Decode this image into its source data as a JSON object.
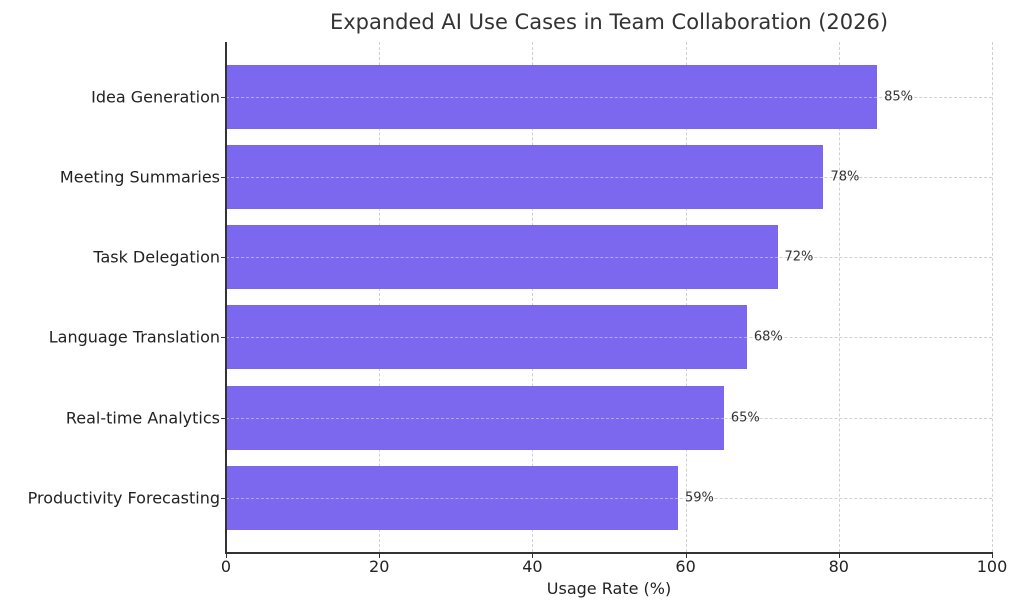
{
  "chart_data": {
    "type": "bar",
    "orientation": "horizontal",
    "title": "Expanded AI Use Cases in Team Collaboration (2026)",
    "xlabel": "Usage Rate (%)",
    "ylabel": "",
    "categories": [
      "Idea Generation",
      "Meeting Summaries",
      "Task Delegation",
      "Language Translation",
      "Real-time Analytics",
      "Productivity Forecasting"
    ],
    "values": [
      85,
      78,
      72,
      68,
      65,
      59
    ],
    "value_labels": [
      "85%",
      "78%",
      "72%",
      "68%",
      "65%",
      "59%"
    ],
    "xlim": [
      0,
      100
    ],
    "xticks": [
      "0",
      "20",
      "40",
      "60",
      "80",
      "100"
    ],
    "grid": true,
    "bar_color": "#7B68EE",
    "legend": null
  }
}
